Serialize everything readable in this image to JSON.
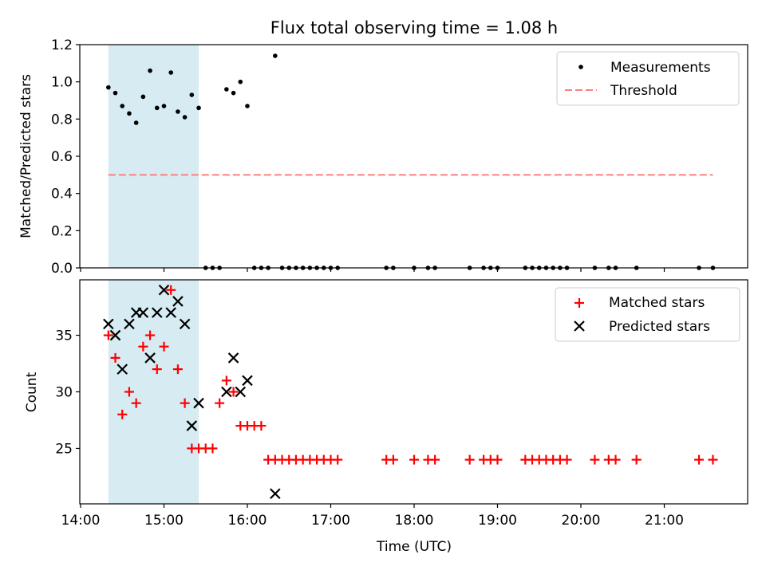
{
  "figure": {
    "title": "Flux total observing time = 1.08 h"
  },
  "chart_data": [
    {
      "type": "scatter",
      "ylabel": "Matched/Predicted stars",
      "xlim": [
        "14:00",
        "22:00"
      ],
      "ylim": [
        0,
        1.2
      ],
      "yticks": [
        "0.0",
        "0.2",
        "0.4",
        "0.6",
        "0.8",
        "1.0",
        "1.2"
      ],
      "legend": {
        "placement": "top-right",
        "entries": [
          "Measurements",
          "Threshold"
        ]
      },
      "shaded_interval": {
        "start": "14:20",
        "end": "15:25",
        "color": "#add8e6"
      },
      "threshold": {
        "label": "Threshold",
        "y": 0.5,
        "x_start": "14:20",
        "x_end": "21:35",
        "color": "#ff7f7f"
      },
      "series": [
        {
          "name": "Measurements",
          "color": "#000000",
          "x": [
            "14:20",
            "14:25",
            "14:30",
            "14:35",
            "14:40",
            "14:45",
            "14:50",
            "14:55",
            "15:00",
            "15:05",
            "15:10",
            "15:15",
            "15:20",
            "15:25",
            "15:30",
            "15:35",
            "15:40",
            "15:45",
            "15:50",
            "15:55",
            "16:00",
            "16:05",
            "16:10",
            "16:15",
            "16:20",
            "16:25",
            "16:30",
            "16:35",
            "16:40",
            "16:45",
            "16:50",
            "16:55",
            "17:00",
            "17:05",
            "17:40",
            "17:45",
            "18:00",
            "18:10",
            "18:15",
            "18:40",
            "18:50",
            "18:55",
            "19:00",
            "19:20",
            "19:25",
            "19:30",
            "19:35",
            "19:40",
            "19:45",
            "19:50",
            "20:10",
            "20:20",
            "20:25",
            "20:40",
            "21:25",
            "21:35"
          ],
          "y": [
            0.97,
            0.94,
            0.87,
            0.83,
            0.78,
            0.92,
            1.06,
            0.86,
            0.87,
            1.05,
            0.84,
            0.81,
            0.93,
            0.86,
            0.0,
            0.0,
            0.0,
            0.96,
            0.94,
            1.0,
            0.87,
            0.0,
            0.0,
            0.0,
            1.14,
            0.0,
            0.0,
            0.0,
            0.0,
            0.0,
            0.0,
            0.0,
            0.0,
            0.0,
            0.0,
            0.0,
            0.0,
            0.0,
            0.0,
            0.0,
            0.0,
            0.0,
            0.0,
            0.0,
            0.0,
            0.0,
            0.0,
            0.0,
            0.0,
            0.0,
            0.0,
            0.0,
            0.0,
            0.0,
            0.0,
            0.0
          ]
        }
      ]
    },
    {
      "type": "scatter",
      "xlabel": "Time (UTC)",
      "ylabel": "Count",
      "xlim": [
        "14:00",
        "22:00"
      ],
      "ylim": [
        20.1,
        39.9
      ],
      "yticks": [
        "25",
        "30",
        "35"
      ],
      "xticks": [
        "14:00",
        "15:00",
        "16:00",
        "17:00",
        "18:00",
        "19:00",
        "20:00",
        "21:00"
      ],
      "legend": {
        "placement": "top-right",
        "entries": [
          "Matched stars",
          "Predicted stars"
        ]
      },
      "shaded_interval": {
        "start": "14:20",
        "end": "15:25",
        "color": "#add8e6"
      },
      "series": [
        {
          "name": "Matched stars",
          "color": "#ff0000",
          "x": [
            "14:20",
            "14:25",
            "14:30",
            "14:35",
            "14:40",
            "14:45",
            "14:50",
            "14:55",
            "15:00",
            "15:05",
            "15:10",
            "15:15",
            "15:20",
            "15:25",
            "15:30",
            "15:35",
            "15:40",
            "15:45",
            "15:50",
            "15:55",
            "16:00",
            "16:05",
            "16:10",
            "16:15",
            "16:20",
            "16:25",
            "16:30",
            "16:35",
            "16:40",
            "16:45",
            "16:50",
            "16:55",
            "17:00",
            "17:05",
            "17:40",
            "17:45",
            "18:00",
            "18:10",
            "18:15",
            "18:40",
            "18:50",
            "18:55",
            "19:00",
            "19:20",
            "19:25",
            "19:30",
            "19:35",
            "19:40",
            "19:45",
            "19:50",
            "20:10",
            "20:20",
            "20:25",
            "20:40",
            "21:25",
            "21:35"
          ],
          "y": [
            35,
            33,
            28,
            30,
            29,
            34,
            35,
            32,
            34,
            39,
            32,
            29,
            25,
            25,
            25,
            25,
            29,
            31,
            30,
            27,
            27,
            27,
            27,
            24,
            24,
            24,
            24,
            24,
            24,
            24,
            24,
            24,
            24,
            24,
            24,
            24,
            24,
            24,
            24,
            24,
            24,
            24,
            24,
            24,
            24,
            24,
            24,
            24,
            24,
            24,
            24,
            24,
            24,
            24,
            24,
            24
          ]
        },
        {
          "name": "Predicted stars",
          "color": "#000000",
          "x": [
            "14:20",
            "14:25",
            "14:30",
            "14:35",
            "14:40",
            "14:45",
            "14:50",
            "14:55",
            "15:00",
            "15:05",
            "15:10",
            "15:15",
            "15:20",
            "15:25",
            "15:45",
            "15:50",
            "15:55",
            "16:00",
            "16:20"
          ],
          "y": [
            36,
            35,
            32,
            36,
            37,
            37,
            33,
            37,
            39,
            37,
            38,
            36,
            27,
            29,
            30,
            33,
            30,
            31,
            21
          ]
        }
      ]
    }
  ]
}
